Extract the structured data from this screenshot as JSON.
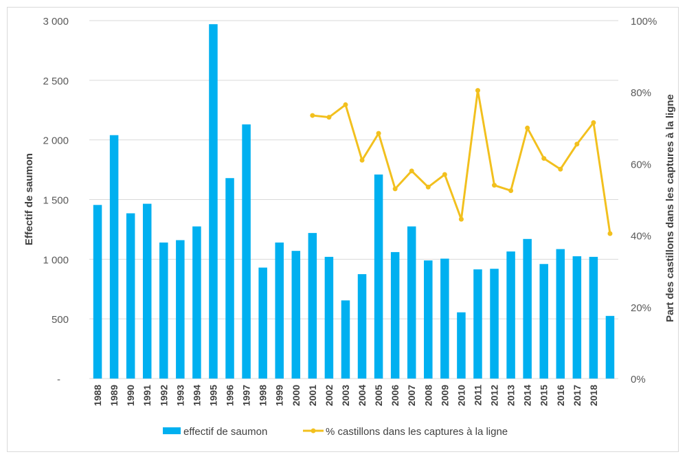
{
  "chart_data": {
    "type": "bar",
    "categories": [
      "1988",
      "1989",
      "1990",
      "1991",
      "1992",
      "1993",
      "1994",
      "1995",
      "1996",
      "1997",
      "1998",
      "1999",
      "2000",
      "2001",
      "2002",
      "2003",
      "2004",
      "2005",
      "2006",
      "2007",
      "2008",
      "2009",
      "2010",
      "2011",
      "2012",
      "2013",
      "2014",
      "2015",
      "2016",
      "2017",
      "2018",
      ""
    ],
    "x_tick_labels": [
      "1988",
      "1989",
      "1990",
      "1991",
      "1992",
      "1993",
      "1994",
      "1995",
      "1996",
      "1997",
      "1998",
      "1999",
      "2000",
      "2001",
      "2002",
      "2003",
      "2004",
      "2005",
      "2006",
      "2007",
      "2008",
      "2009",
      "2010",
      "2011",
      "2012",
      "2013",
      "2014",
      "2015",
      "2016",
      "2017",
      "2018"
    ],
    "series": [
      {
        "name": "effectif de saumon",
        "type": "bar",
        "axis": "left",
        "color": "#00b0f0",
        "values": [
          1455,
          2040,
          1385,
          1465,
          1140,
          1160,
          1275,
          2970,
          1680,
          2130,
          930,
          1140,
          1070,
          1220,
          1020,
          655,
          875,
          1710,
          1060,
          1275,
          990,
          1005,
          555,
          915,
          920,
          1065,
          1170,
          960,
          1085,
          1025,
          1020,
          525
        ]
      },
      {
        "name": "% castillons dans les captures à la ligne",
        "type": "line",
        "axis": "right",
        "color": "#f2c01e",
        "values": [
          null,
          null,
          null,
          null,
          null,
          null,
          null,
          null,
          null,
          null,
          null,
          null,
          null,
          73.5,
          73,
          76.5,
          61,
          68.5,
          53,
          58,
          53.5,
          57,
          44.5,
          80.5,
          54,
          52.5,
          70,
          61.5,
          58.5,
          65.5,
          71.5,
          40.5
        ]
      }
    ],
    "ylabel": "Effectif de saumon",
    "y2label": "Part des castillons dans les captures à la ligne",
    "ylim": [
      0,
      3000
    ],
    "y2lim": [
      0,
      100
    ],
    "y_ticks": [
      "-",
      "500",
      "1 000",
      "1 500",
      "2 000",
      "2 500",
      "3 000"
    ],
    "y2_ticks": [
      "0%",
      "20%",
      "40%",
      "60%",
      "80%",
      "100%"
    ],
    "grid": true,
    "legend_position": "bottom"
  }
}
